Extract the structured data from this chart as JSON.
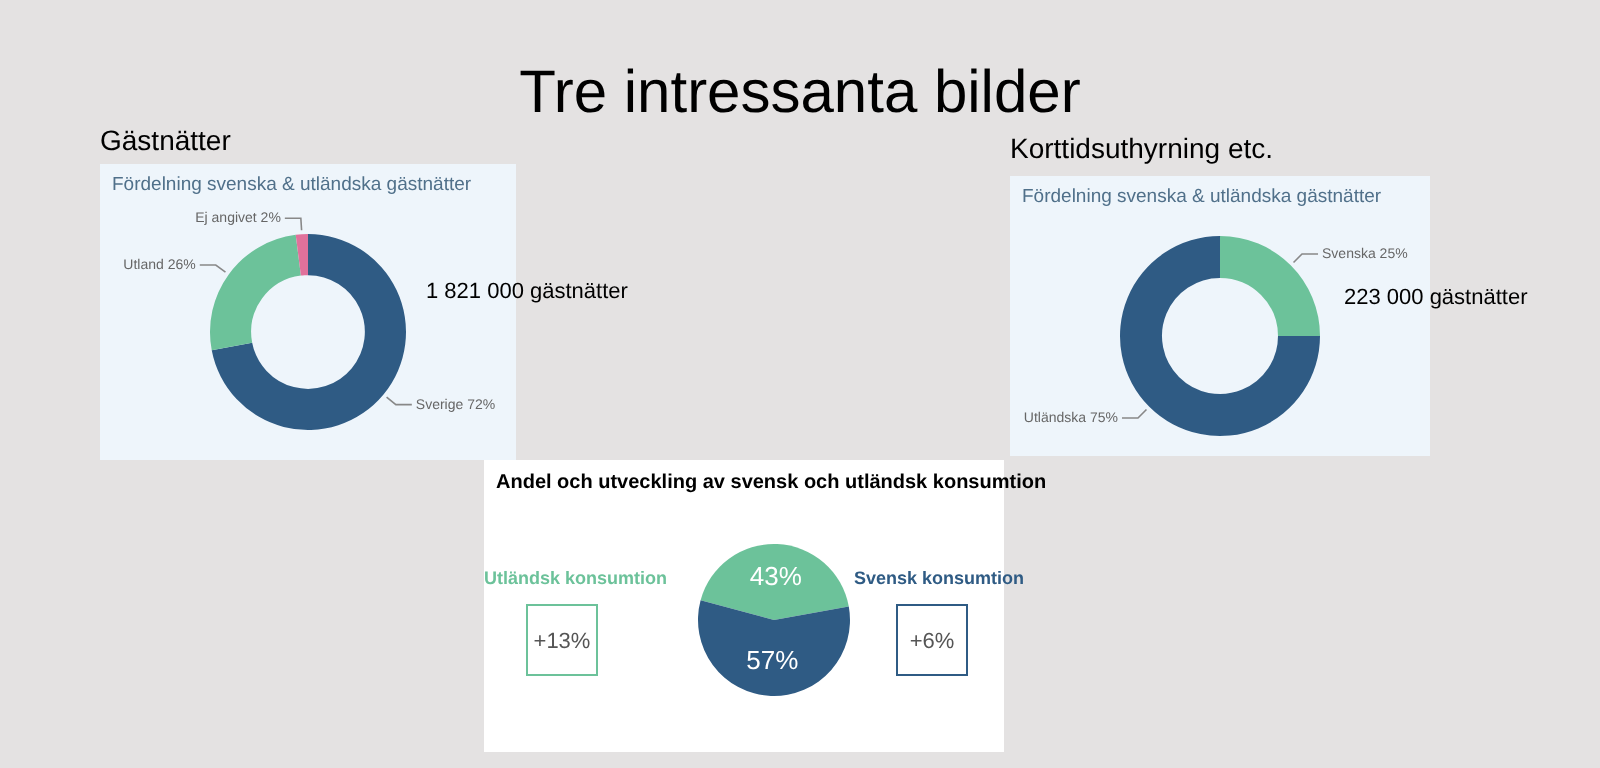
{
  "chart_data": [
    {
      "type": "other",
      "title": "Tre intressanta bilder"
    },
    {
      "type": "donut",
      "title": "Gästnätter",
      "subtitle": "Fördelning svenska & utländska gästnätter",
      "categories": [
        "Sverige",
        "Utland",
        "Ej angivet"
      ],
      "values": [
        72,
        26,
        2
      ],
      "colors": [
        "#2f5b84",
        "#6cc29a",
        "#e0719b"
      ],
      "value_labels": [
        "72%",
        "26%",
        "2%"
      ],
      "annotations": [
        "1 821 000 gästnätter"
      ]
    },
    {
      "type": "donut",
      "title": "Korttidsuthyrning etc.",
      "subtitle": "Fördelning svenska & utländska gästnätter",
      "categories": [
        "Svenska",
        "Utländska"
      ],
      "values": [
        25,
        75
      ],
      "colors": [
        "#6cc29a",
        "#2f5b84"
      ],
      "value_labels": [
        "25%",
        "75%"
      ],
      "annotations": [
        "223 000 gästnätter"
      ]
    },
    {
      "type": "pie",
      "title": "Andel och utveckling av svensk och utländsk konsumtion",
      "categories": [
        null,
        null
      ],
      "values": [
        43,
        57
      ],
      "colors": [
        "#6cc29a",
        "#2f5b84"
      ],
      "value_labels": [
        "43%",
        "57%"
      ],
      "annotations": [
        "Utländsk konsumtion",
        "+13%",
        "Svensk konsumtion",
        "+6%"
      ]
    }
  ]
}
